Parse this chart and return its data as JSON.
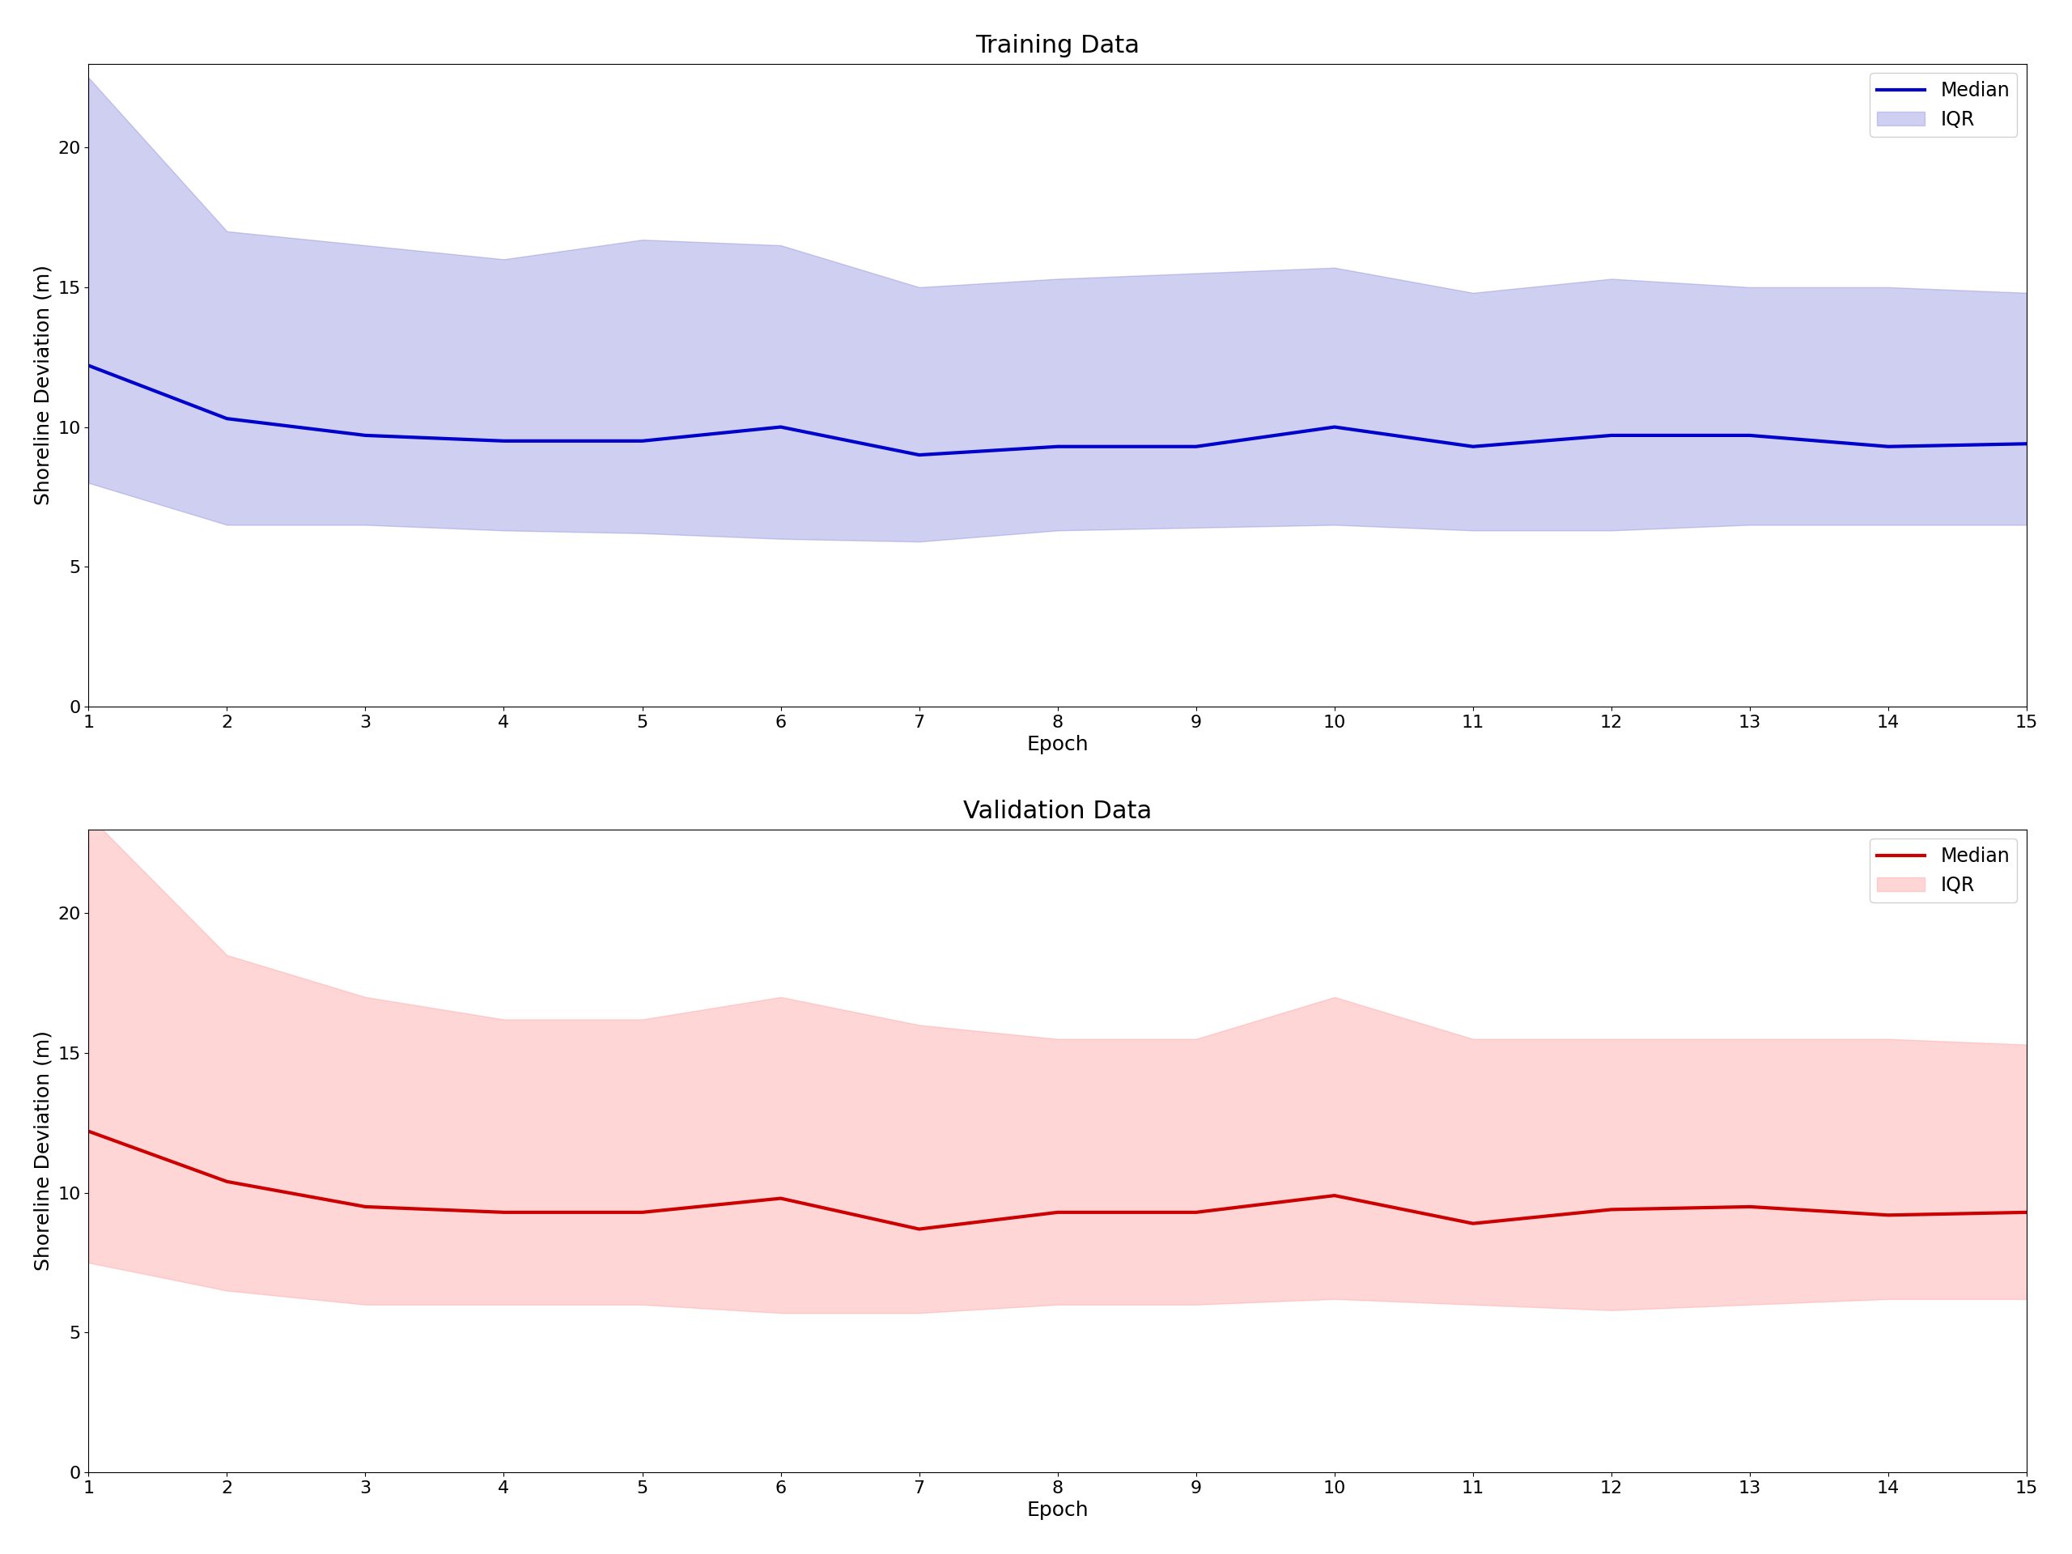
{
  "epochs": [
    1,
    2,
    3,
    4,
    5,
    6,
    7,
    8,
    9,
    10,
    11,
    12,
    13,
    14,
    15
  ],
  "train_median": [
    12.2,
    10.3,
    9.7,
    9.5,
    9.5,
    10.0,
    9.0,
    9.3,
    9.3,
    10.0,
    9.3,
    9.7,
    9.7,
    9.3,
    9.4
  ],
  "train_q1": [
    8.0,
    6.5,
    6.5,
    6.3,
    6.2,
    6.0,
    5.9,
    6.3,
    6.4,
    6.5,
    6.3,
    6.3,
    6.5,
    6.5,
    6.5
  ],
  "train_q3": [
    22.5,
    17.0,
    16.5,
    16.0,
    16.7,
    16.5,
    15.0,
    15.3,
    15.5,
    15.7,
    14.8,
    15.3,
    15.0,
    15.0,
    14.8
  ],
  "val_median": [
    12.2,
    10.4,
    9.5,
    9.3,
    9.3,
    9.8,
    8.7,
    9.3,
    9.3,
    9.9,
    8.9,
    9.4,
    9.5,
    9.2,
    9.3
  ],
  "val_q1": [
    7.5,
    6.5,
    6.0,
    6.0,
    6.0,
    5.7,
    5.7,
    6.0,
    6.0,
    6.2,
    6.0,
    5.8,
    6.0,
    6.2,
    6.2
  ],
  "val_q3": [
    23.5,
    18.5,
    17.0,
    16.2,
    16.2,
    17.0,
    16.0,
    15.5,
    15.5,
    17.0,
    15.5,
    15.5,
    15.5,
    15.5,
    15.3
  ],
  "train_line_color": "#0000CD",
  "train_fill_color": "#8888DD",
  "val_line_color": "#CC0000",
  "val_fill_color": "#FF9999",
  "train_title": "Training Data",
  "val_title": "Validation Data",
  "xlabel": "Epoch",
  "ylabel": "Shoreline Deviation (m)",
  "ylim": [
    0,
    23
  ],
  "xlim": [
    1,
    15
  ],
  "title_fontsize": 22,
  "label_fontsize": 18,
  "tick_fontsize": 16,
  "legend_fontsize": 17,
  "fill_alpha": 0.4,
  "line_width": 3.0
}
